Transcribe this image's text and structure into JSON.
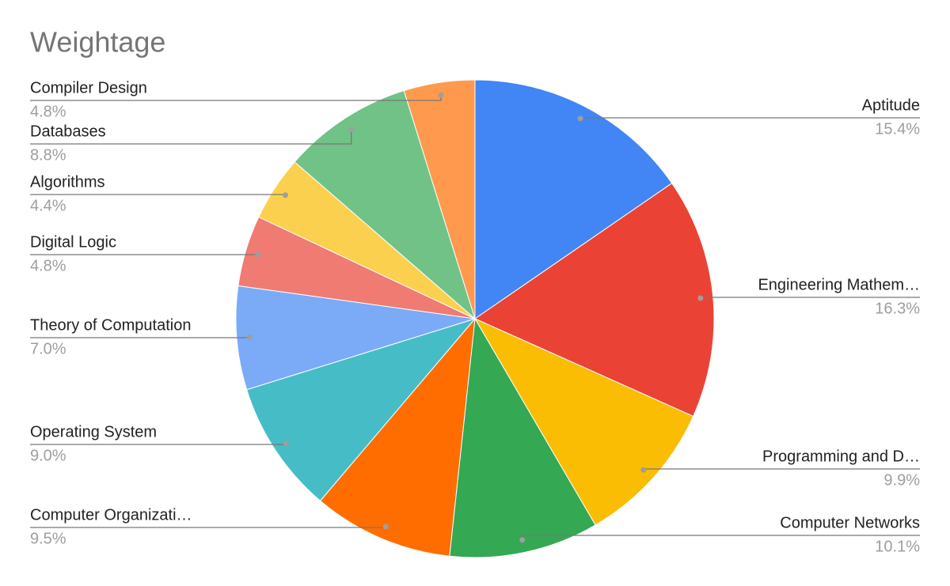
{
  "chart_data": {
    "type": "pie",
    "title": "Weightage",
    "categories": [
      "Aptitude",
      "Engineering Mathem…",
      "Programming and D…",
      "Computer Networks",
      "Computer Organizati…",
      "Operating System",
      "Theory of Computation",
      "Digital Logic",
      "Algorithms",
      "Databases",
      "Compiler Design"
    ],
    "values": [
      15.4,
      16.3,
      9.9,
      10.1,
      9.5,
      9.0,
      7.0,
      4.8,
      4.4,
      8.8,
      4.8
    ],
    "value_labels": [
      "15.4%",
      "16.3%",
      "9.9%",
      "10.1%",
      "9.5%",
      "9.0%",
      "7.0%",
      "4.8%",
      "4.4%",
      "8.8%",
      "4.8%"
    ],
    "colors": [
      "#4285f4",
      "#ea4335",
      "#fbbc04",
      "#34a853",
      "#ff6d01",
      "#46bdc6",
      "#7baaf7",
      "#f07b72",
      "#fcd04f",
      "#71c287",
      "#ff994d"
    ]
  }
}
